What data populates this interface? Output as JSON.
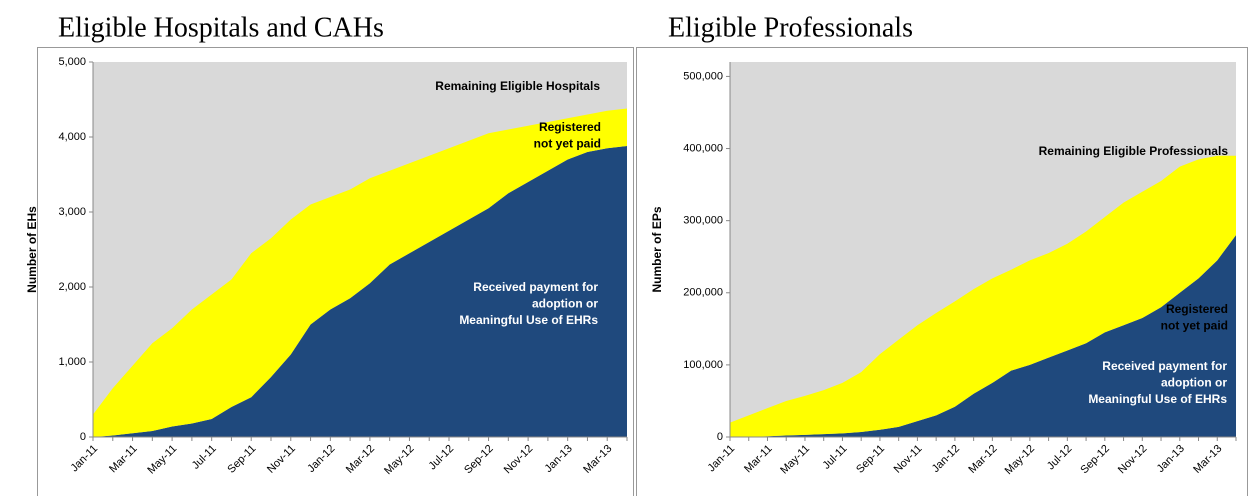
{
  "chart_data": [
    {
      "type": "area",
      "title": "Eligible Hospitals and CAHs",
      "y_label": "Number of EHs",
      "categories": [
        "Jan-11",
        null,
        "Mar-11",
        null,
        "May-11",
        null,
        "Jul-11",
        null,
        "Sep-11",
        null,
        "Nov-11",
        null,
        "Jan-12",
        null,
        "Mar-12",
        null,
        "May-12",
        null,
        "Jul-12",
        null,
        "Sep-12",
        null,
        "Nov-12",
        null,
        "Jan-13",
        null,
        "Mar-13",
        null
      ],
      "background": "#d9d9d9",
      "series": [
        {
          "color": "#1f497d",
          "values": [
            0,
            20,
            50,
            80,
            140,
            180,
            240,
            400,
            530,
            800,
            1100,
            1500,
            1700,
            1850,
            2050,
            2300,
            2450,
            2600,
            2750,
            2900,
            3050,
            3250,
            3400,
            3550,
            3700,
            3800,
            3850,
            3880
          ]
        },
        {
          "color": "#ffff00",
          "values": [
            300,
            630,
            900,
            1170,
            1310,
            1520,
            1660,
            1700,
            1920,
            1850,
            1800,
            1600,
            1500,
            1450,
            1400,
            1250,
            1200,
            1150,
            1100,
            1050,
            1000,
            850,
            750,
            650,
            550,
            500,
            500,
            500
          ]
        }
      ],
      "annotations": [
        {
          "lines": [
            "Remaining Eligible Hospitals"
          ],
          "color": "#000"
        },
        {
          "lines": [
            "Registered",
            "not yet paid"
          ],
          "color": "#000"
        },
        {
          "lines": [
            "Received payment for",
            "adoption or",
            "Meaningful Use of EHRs"
          ],
          "color": "#fff"
        }
      ],
      "ylim": [
        0,
        5000
      ],
      "yticks": [
        0,
        {
          "value": 1000,
          "label": "1,000"
        },
        {
          "value": 2000,
          "label": "2,000"
        },
        {
          "value": 3000,
          "label": "3,000"
        },
        {
          "value": 4000,
          "label": "4,000"
        },
        {
          "value": 5000,
          "label": "5,000"
        }
      ]
    },
    {
      "type": "area",
      "title": "Eligible Professionals",
      "y_label": "Number of EPs",
      "categories": [
        "Jan-11",
        null,
        "Mar-11",
        null,
        "May-11",
        null,
        "Jul-11",
        null,
        "Sep-11",
        null,
        "Nov-11",
        null,
        "Jan-12",
        null,
        "Mar-12",
        null,
        "May-12",
        null,
        "Jul-12",
        null,
        "Sep-12",
        null,
        "Nov-12",
        null,
        "Jan-13",
        null,
        "Mar-13",
        null
      ],
      "background": "#d9d9d9",
      "series": [
        {
          "color": "#1f497d",
          "values": [
            0,
            0,
            1000,
            2000,
            3000,
            4000,
            5000,
            7000,
            10000,
            14000,
            22000,
            30000,
            42000,
            60000,
            75000,
            92000,
            100000,
            110000,
            120000,
            130000,
            145000,
            155000,
            165000,
            180000,
            200000,
            220000,
            245000,
            280000
          ]
        },
        {
          "color": "#ffff00",
          "values": [
            20000,
            30000,
            39000,
            48000,
            54000,
            61000,
            70000,
            83000,
            105000,
            121000,
            133000,
            142000,
            146000,
            145000,
            145000,
            140000,
            145000,
            145000,
            148000,
            155000,
            160000,
            170000,
            175000,
            175000,
            175000,
            165000,
            145000,
            110000
          ]
        }
      ],
      "annotations": [
        {
          "lines": [
            "Remaining Eligible Professionals"
          ],
          "color": "#000"
        },
        {
          "lines": [
            "Registered",
            "not yet paid"
          ],
          "color": "#000"
        },
        {
          "lines": [
            "Received payment for",
            "adoption or",
            "Meaningful Use of EHRs"
          ],
          "color": "#fff"
        }
      ],
      "ylim": [
        0,
        520000
      ],
      "yticks": [
        0,
        {
          "value": 100000,
          "label": "100,000"
        },
        {
          "value": 200000,
          "label": "200,000"
        },
        {
          "value": 300000,
          "label": "300,000"
        },
        {
          "value": 400000,
          "label": "400,000"
        },
        {
          "value": 500000,
          "label": "500,000"
        }
      ]
    }
  ]
}
